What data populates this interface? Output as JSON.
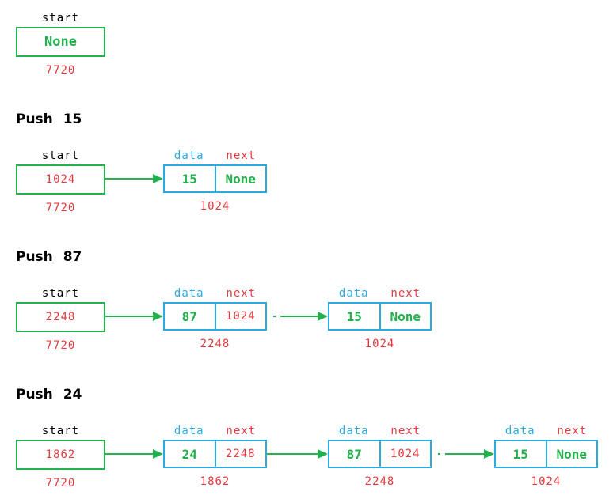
{
  "colors": {
    "green": "#22b14c",
    "red": "#e6393d",
    "cyan": "#29abe2",
    "text": "#000000"
  },
  "labels": {
    "start": "start",
    "data": "data",
    "next": "next"
  },
  "sections": [
    {
      "name": "initial",
      "start": {
        "label": "start",
        "value": "None",
        "address": "7720"
      },
      "nodes": []
    },
    {
      "name": "push-15",
      "title": "Push 15",
      "start": {
        "label": "start",
        "value": "1024",
        "address": "7720"
      },
      "nodes": [
        {
          "data": "15",
          "next": "None",
          "address": "1024"
        }
      ]
    },
    {
      "name": "push-87",
      "title": "Push 87",
      "start": {
        "label": "start",
        "value": "2248",
        "address": "7720"
      },
      "nodes": [
        {
          "data": "87",
          "next": "1024",
          "address": "2248"
        },
        {
          "data": "15",
          "next": "None",
          "address": "1024"
        }
      ]
    },
    {
      "name": "push-24",
      "title": "Push 24",
      "start": {
        "label": "start",
        "value": "1862",
        "address": "7720"
      },
      "nodes": [
        {
          "data": "24",
          "next": "2248",
          "address": "1862"
        },
        {
          "data": "87",
          "next": "1024",
          "address": "2248"
        },
        {
          "data": "15",
          "next": "None",
          "address": "1024"
        }
      ]
    }
  ]
}
